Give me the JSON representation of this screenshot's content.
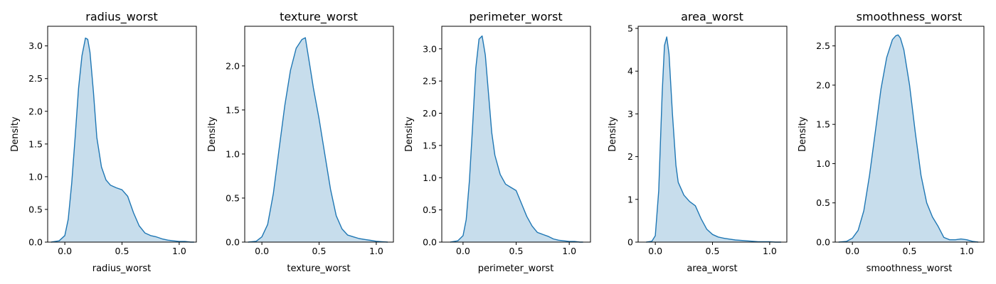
{
  "figure": {
    "type": "kde-grid",
    "color": "#1f77b4"
  },
  "chart_data": [
    {
      "type": "area",
      "title": "radius_worst",
      "xlabel": "radius_worst",
      "ylabel": "Density",
      "xlim": [
        -0.15,
        1.15
      ],
      "ylim": [
        0,
        3.3
      ],
      "xticks": [
        "0.0",
        "0.5",
        "1.0"
      ],
      "yticks": [
        "0.0",
        "0.5",
        "1.0",
        "1.5",
        "2.0",
        "2.5",
        "3.0"
      ],
      "x": [
        -0.12,
        -0.05,
        0.0,
        0.03,
        0.06,
        0.09,
        0.12,
        0.15,
        0.18,
        0.2,
        0.22,
        0.25,
        0.28,
        0.32,
        0.36,
        0.4,
        0.45,
        0.5,
        0.55,
        0.6,
        0.65,
        0.7,
        0.75,
        0.8,
        0.85,
        0.9,
        0.95,
        1.0,
        1.05,
        1.1,
        1.13
      ],
      "y": [
        0.0,
        0.02,
        0.1,
        0.35,
        0.9,
        1.6,
        2.35,
        2.85,
        3.12,
        3.1,
        2.9,
        2.3,
        1.6,
        1.15,
        0.95,
        0.87,
        0.83,
        0.8,
        0.7,
        0.45,
        0.25,
        0.14,
        0.1,
        0.08,
        0.05,
        0.03,
        0.02,
        0.01,
        0.01,
        0.0,
        0.0
      ]
    },
    {
      "type": "area",
      "title": "texture_worst",
      "xlabel": "texture_worst",
      "ylabel": "Density",
      "xlim": [
        -0.15,
        1.15
      ],
      "ylim": [
        0,
        2.45
      ],
      "xticks": [
        "0.0",
        "0.5",
        "1.0"
      ],
      "yticks": [
        "0.0",
        "0.5",
        "1.0",
        "1.5",
        "2.0"
      ],
      "x": [
        -0.12,
        -0.05,
        0.0,
        0.05,
        0.1,
        0.15,
        0.2,
        0.25,
        0.3,
        0.35,
        0.38,
        0.42,
        0.45,
        0.5,
        0.55,
        0.6,
        0.65,
        0.7,
        0.75,
        0.8,
        0.85,
        0.9,
        0.95,
        1.0,
        1.05,
        1.1
      ],
      "y": [
        0.0,
        0.01,
        0.06,
        0.2,
        0.55,
        1.05,
        1.55,
        1.95,
        2.2,
        2.3,
        2.32,
        2.0,
        1.75,
        1.4,
        1.0,
        0.6,
        0.3,
        0.15,
        0.08,
        0.06,
        0.04,
        0.03,
        0.02,
        0.01,
        0.005,
        0.0
      ]
    },
    {
      "type": "area",
      "title": "perimeter_worst",
      "xlabel": "perimeter_worst",
      "ylabel": "Density",
      "xlim": [
        -0.2,
        1.2
      ],
      "ylim": [
        0,
        3.35
      ],
      "xticks": [
        "0.0",
        "0.5",
        "1.0"
      ],
      "yticks": [
        "0.0",
        "0.5",
        "1.0",
        "1.5",
        "2.0",
        "2.5",
        "3.0"
      ],
      "x": [
        -0.12,
        -0.05,
        0.0,
        0.03,
        0.06,
        0.09,
        0.12,
        0.15,
        0.18,
        0.21,
        0.24,
        0.27,
        0.3,
        0.35,
        0.4,
        0.45,
        0.5,
        0.55,
        0.6,
        0.65,
        0.7,
        0.75,
        0.8,
        0.85,
        0.9,
        0.95,
        1.0,
        1.05,
        1.1,
        1.13
      ],
      "y": [
        0.0,
        0.02,
        0.1,
        0.35,
        0.95,
        1.8,
        2.7,
        3.15,
        3.2,
        2.9,
        2.3,
        1.7,
        1.35,
        1.05,
        0.9,
        0.85,
        0.8,
        0.6,
        0.4,
        0.25,
        0.15,
        0.12,
        0.09,
        0.05,
        0.03,
        0.02,
        0.01,
        0.01,
        0.0,
        0.0
      ]
    },
    {
      "type": "area",
      "title": "area_worst",
      "xlabel": "area_worst",
      "ylabel": "Density",
      "xlim": [
        -0.15,
        1.15
      ],
      "ylim": [
        0,
        5.05
      ],
      "xticks": [
        "0.0",
        "0.5",
        "1.0"
      ],
      "yticks": [
        "0",
        "1",
        "2",
        "3",
        "4",
        "5"
      ],
      "x": [
        -0.08,
        -0.03,
        0.0,
        0.03,
        0.06,
        0.08,
        0.1,
        0.12,
        0.15,
        0.18,
        0.2,
        0.25,
        0.3,
        0.35,
        0.4,
        0.45,
        0.5,
        0.55,
        0.6,
        0.65,
        0.7,
        0.75,
        0.8,
        0.85,
        0.9,
        0.95,
        1.0,
        1.05,
        1.1
      ],
      "y": [
        0.0,
        0.02,
        0.15,
        1.2,
        3.5,
        4.6,
        4.8,
        4.4,
        3.0,
        1.8,
        1.4,
        1.1,
        0.95,
        0.85,
        0.55,
        0.3,
        0.18,
        0.12,
        0.09,
        0.07,
        0.05,
        0.04,
        0.03,
        0.02,
        0.01,
        0.01,
        0.01,
        0.0,
        0.0
      ]
    },
    {
      "type": "area",
      "title": "smoothness_worst",
      "xlabel": "smoothness_worst",
      "ylabel": "Density",
      "xlim": [
        -0.15,
        1.15
      ],
      "ylim": [
        0,
        2.75
      ],
      "xticks": [
        "0.0",
        "0.5",
        "1.0"
      ],
      "yticks": [
        "0.0",
        "0.5",
        "1.0",
        "1.5",
        "2.0",
        "2.5"
      ],
      "x": [
        -0.12,
        -0.05,
        0.0,
        0.05,
        0.1,
        0.15,
        0.2,
        0.25,
        0.3,
        0.35,
        0.38,
        0.4,
        0.42,
        0.45,
        0.5,
        0.55,
        0.6,
        0.65,
        0.7,
        0.75,
        0.8,
        0.85,
        0.9,
        0.95,
        1.0,
        1.05,
        1.1
      ],
      "y": [
        0.0,
        0.01,
        0.05,
        0.15,
        0.4,
        0.85,
        1.4,
        1.95,
        2.35,
        2.58,
        2.63,
        2.64,
        2.6,
        2.45,
        2.0,
        1.4,
        0.85,
        0.5,
        0.32,
        0.2,
        0.06,
        0.03,
        0.03,
        0.04,
        0.03,
        0.01,
        0.0
      ]
    }
  ]
}
